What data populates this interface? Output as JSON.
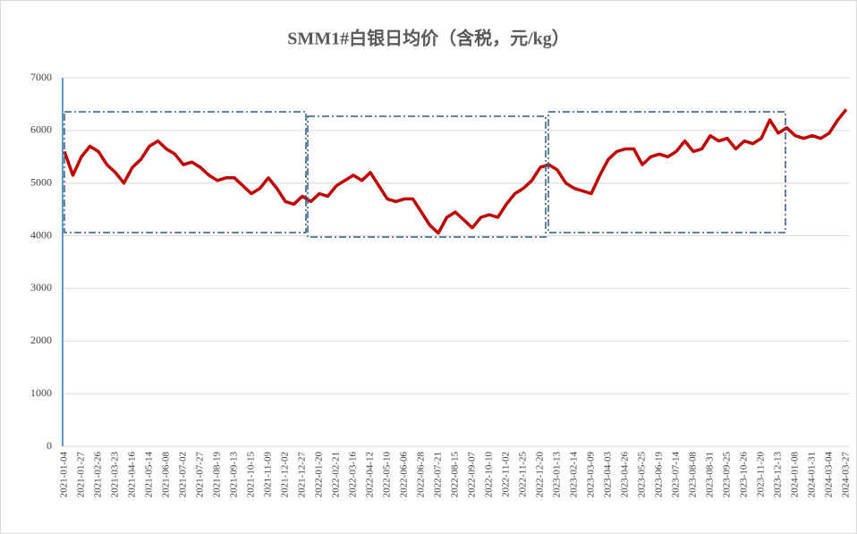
{
  "chart_data": {
    "type": "line",
    "title": "SMM1#白银日均价（含税，元/kg）",
    "categories": [
      "2021-01-04",
      null,
      "2021-01-27",
      null,
      "2021-02-26",
      null,
      "2021-03-23",
      null,
      "2021-04-16",
      null,
      "2021-05-14",
      null,
      "2021-06-08",
      null,
      "2021-07-02",
      null,
      "2021-07-27",
      null,
      "2021-08-19",
      null,
      "2021-09-13",
      null,
      "2021-10-15",
      null,
      "2021-11-09",
      null,
      "2021-12-02",
      null,
      "2021-12-27",
      null,
      "2022-01-20",
      null,
      "2022-02-21",
      null,
      "2022-03-16",
      null,
      "2022-04-12",
      null,
      "2022-05-10",
      null,
      "2022-06-06",
      null,
      "2022-06-28",
      null,
      "2022-07-21",
      null,
      "2022-08-15",
      null,
      "2022-09-07",
      null,
      "2022-10-10",
      null,
      "2022-11-02",
      null,
      "2022-11-25",
      null,
      "2022-12-20",
      null,
      "2023-01-13",
      null,
      "2023-02-14",
      null,
      "2023-03-09",
      null,
      "2023-04-03",
      null,
      "2023-04-26",
      null,
      "2023-05-25",
      null,
      "2023-06-19",
      null,
      "2023-07-14",
      null,
      "2023-08-08",
      null,
      "2023-08-31",
      null,
      "2023-09-25",
      null,
      "2023-10-26",
      null,
      "2023-11-20",
      null,
      "2023-12-13",
      null,
      "2024-01-08",
      null,
      "2024-01-31",
      null,
      "2024-03-04",
      null,
      "2024-03-27"
    ],
    "series": [
      {
        "name": "SMM1#白银日均价",
        "color": "#c00000",
        "values": [
          5600,
          5150,
          5500,
          5700,
          5600,
          5350,
          5200,
          5000,
          5300,
          5450,
          5700,
          5800,
          5650,
          5550,
          5350,
          5400,
          5300,
          5150,
          5050,
          5100,
          5100,
          4950,
          4800,
          4900,
          5100,
          4900,
          4650,
          4600,
          4750,
          4650,
          4800,
          4750,
          4950,
          5050,
          5150,
          5050,
          5200,
          4950,
          4700,
          4650,
          4700,
          4700,
          4450,
          4200,
          4050,
          4350,
          4450,
          4300,
          4150,
          4350,
          4400,
          4350,
          4600,
          4800,
          4900,
          5050,
          5300,
          5350,
          5250,
          5000,
          4900,
          4850,
          4800,
          5150,
          5450,
          5600,
          5650,
          5650,
          5350,
          5500,
          5550,
          5500,
          5600,
          5800,
          5600,
          5650,
          5900,
          5800,
          5850,
          5650,
          5800,
          5750,
          5850,
          6200,
          5950,
          6050,
          5900,
          5850,
          5900,
          5850,
          5950,
          6200,
          6400
        ]
      }
    ],
    "ylim": [
      0,
      7000
    ],
    "yticks": [
      0,
      1000,
      2000,
      3000,
      4000,
      5000,
      6000,
      7000
    ],
    "grid": true
  }
}
